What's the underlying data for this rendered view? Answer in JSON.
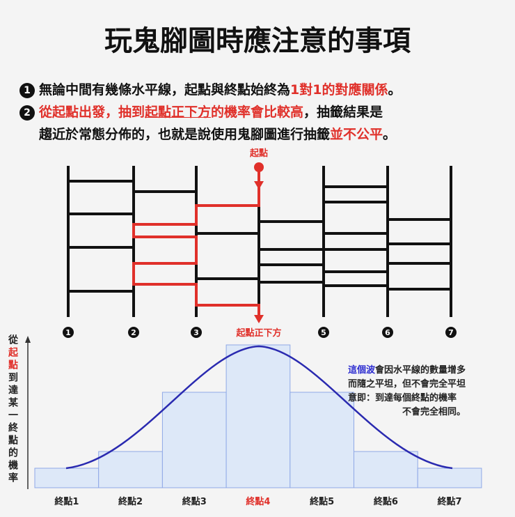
{
  "title": "玩鬼腳圖時應注意的事項",
  "points": [
    {
      "number": "1",
      "lines": [
        [
          {
            "text": "無論中間有幾條水平線，起點與終點始終為"
          },
          {
            "text": "1對1的對應關係",
            "red": true
          },
          {
            "text": "。"
          }
        ]
      ]
    },
    {
      "number": "2",
      "lines": [
        [
          {
            "text": "從起點出發，抽到",
            "red": true
          },
          {
            "text": "起點正下方",
            "red": true,
            "underline": true
          },
          {
            "text": "的機率會比較高",
            "red": true
          },
          {
            "text": "，抽籤結果是"
          }
        ],
        [
          {
            "text": "趨近於常態分佈的，也就是說使用鬼腳圖進行抽籤"
          },
          {
            "text": "並不公平",
            "red": true
          },
          {
            "text": "。"
          }
        ]
      ]
    }
  ],
  "ladder": {
    "start_label": "起點",
    "bottom_labels": [
      "1",
      "2",
      "3",
      "起點正下方",
      "5",
      "6",
      "7"
    ]
  },
  "histogram": {
    "y_label": [
      {
        "text": "從"
      },
      {
        "text": "起點",
        "red": true
      },
      {
        "text": "到達某一終點的機率"
      }
    ],
    "categories": [
      "終點1",
      "終點2",
      "終點3",
      "終點4",
      "終點5",
      "終點6",
      "終點7"
    ],
    "note": [
      [
        {
          "text": "這個波",
          "blue": true
        },
        {
          "text": "會因水平線的數量增多"
        }
      ],
      [
        {
          "text": "而隨之平坦，但不會完全平坦"
        }
      ],
      [
        {
          "text": "意即：到達每個終點的機率"
        }
      ],
      [
        {
          "text": "不會完全相同。"
        }
      ]
    ]
  }
}
